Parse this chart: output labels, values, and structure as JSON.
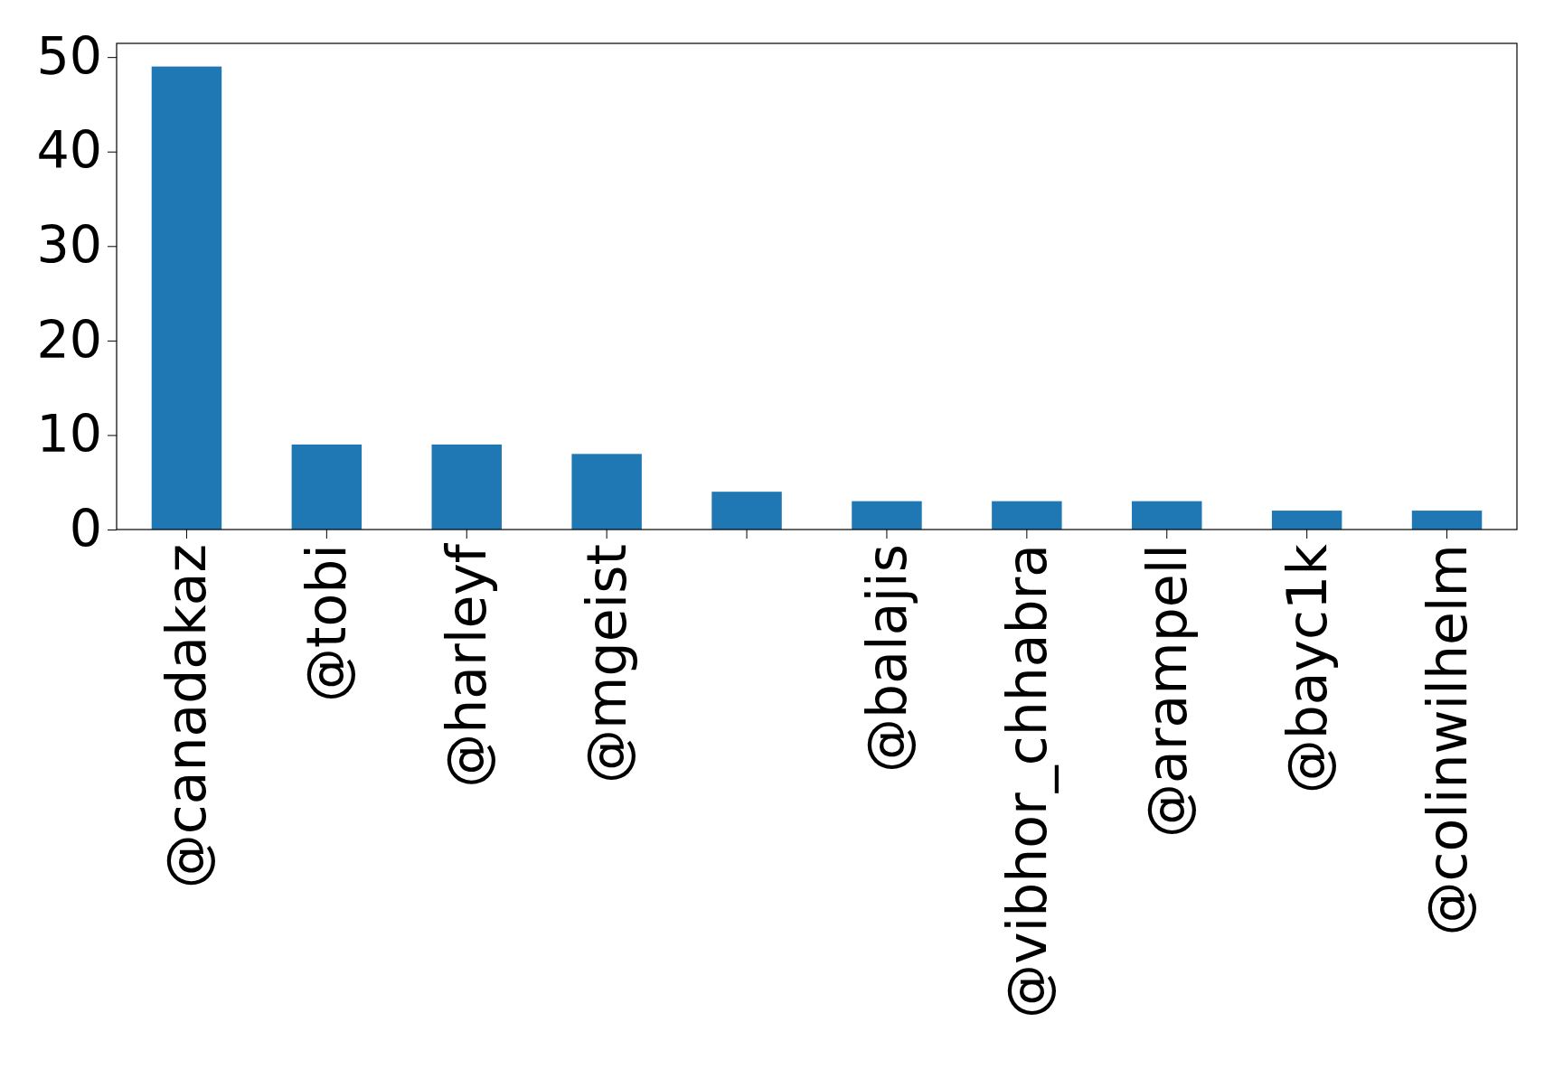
{
  "chart_data": {
    "type": "bar",
    "categories": [
      "@canadakaz",
      "@tobi",
      "@harleyf",
      "@mgeist",
      null,
      "@balajis",
      "@vibhor_chhabra",
      "@arampell",
      "@bayc1k",
      "@colinwilhelm"
    ],
    "values": [
      49,
      9,
      9,
      8,
      4,
      3,
      3,
      3,
      2,
      2
    ],
    "color": "#1f77b4",
    "ylim": [
      0,
      51.45
    ],
    "yticks": [
      0,
      10,
      20,
      30,
      40,
      50
    ],
    "grid": false
  }
}
